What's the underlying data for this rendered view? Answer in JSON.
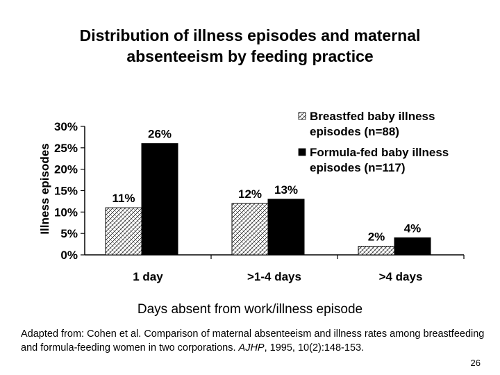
{
  "slide": {
    "title_line1": "Distribution of illness episodes and maternal",
    "title_line2": "absenteeism by feeding practice",
    "caption_pre": "Adapted from: Cohen et al. Comparison of maternal absenteeism and illness rates among breastfeeding and formula-feeding women in two corporations. ",
    "caption_journal": "AJHP",
    "caption_post": ", 1995, 10(2):148-153.",
    "page_number": "26"
  },
  "chart_data": {
    "type": "bar",
    "categories": [
      "1 day",
      ">1-4 days",
      ">4 days"
    ],
    "series": [
      {
        "name": "Breastfed baby illness episodes (n=88)",
        "values": [
          11,
          12,
          2
        ],
        "labels": [
          "11%",
          "12%",
          "2%"
        ],
        "pattern": "crosshatch"
      },
      {
        "name": "Formula-fed baby illness episodes (n=117)",
        "values": [
          26,
          13,
          4
        ],
        "labels": [
          "26%",
          "13%",
          "4%"
        ],
        "color": "#000000"
      }
    ],
    "ylabel": "Illness episodes",
    "xlabel": "Days absent from work/illness episode",
    "ylim": [
      0,
      30
    ],
    "yticks": [
      0,
      5,
      10,
      15,
      20,
      25,
      30
    ],
    "ytick_labels": [
      "0%",
      "5%",
      "10%",
      "15%",
      "20%",
      "25%",
      "30%"
    ],
    "legend_position": "top-right",
    "grid": false
  }
}
